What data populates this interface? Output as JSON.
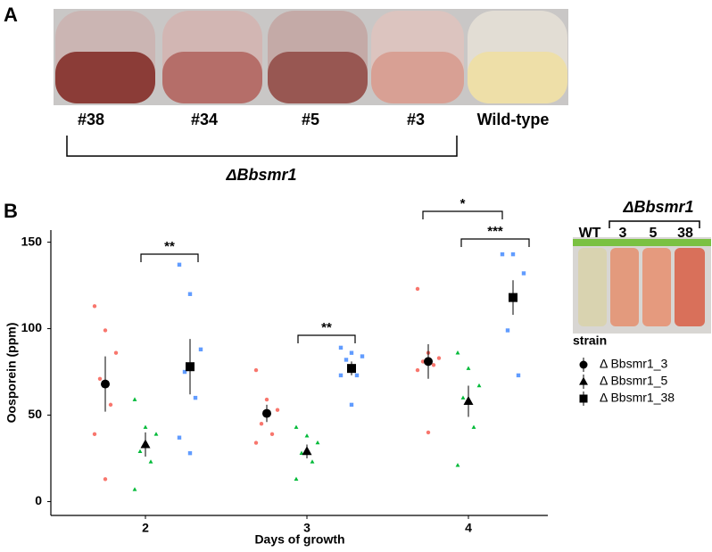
{
  "panel_labels": [
    "A",
    "B"
  ],
  "photo_a": {
    "flask_labels": [
      "#38",
      "#34",
      "#5",
      "#3",
      "Wild-type"
    ],
    "group_label": "ΔBbsmr1"
  },
  "inset_photo": {
    "group_label": "ΔBbsmr1",
    "tube_labels": [
      "WT",
      "3",
      "5",
      "38"
    ]
  },
  "chart_data": {
    "type": "strip",
    "xlabel": "Days of growth",
    "ylabel": "Oosporein (ppm)",
    "categories": [
      "2",
      "3",
      "4"
    ],
    "ylim": [
      -8,
      157
    ],
    "yticks": [
      0,
      50,
      100,
      150
    ],
    "legend_title": "strain",
    "series": [
      {
        "name": "Δ Bbsmr1_3",
        "color": "#f8766d",
        "marker": "circle",
        "means": [
          68,
          51,
          81
        ],
        "errors": [
          16,
          5,
          10
        ],
        "points": [
          [
            113,
            99,
            86,
            71,
            56,
            39,
            13
          ],
          [
            76,
            59,
            53,
            45,
            39,
            34
          ],
          [
            123,
            86,
            83,
            81,
            79,
            76,
            40
          ]
        ]
      },
      {
        "name": "Δ Bbsmr1_5",
        "color": "#00ba38",
        "marker": "triangle",
        "means": [
          33,
          29,
          58
        ],
        "errors": [
          7,
          4,
          9
        ],
        "points": [
          [
            59,
            43,
            39,
            29,
            23,
            7
          ],
          [
            43,
            38,
            34,
            28,
            23,
            13
          ],
          [
            86,
            77,
            67,
            60,
            43,
            21
          ]
        ]
      },
      {
        "name": "Δ Bbsmr1_38",
        "color": "#619cff",
        "marker": "square",
        "means": [
          78,
          77,
          118
        ],
        "errors": [
          16,
          4,
          10
        ],
        "points": [
          [
            137,
            120,
            88,
            75,
            60,
            37,
            28
          ],
          [
            89,
            86,
            84,
            82,
            73,
            73,
            56
          ],
          [
            143,
            143,
            132,
            99,
            73
          ]
        ]
      }
    ],
    "annotations": [
      "**",
      "**",
      "*",
      "***"
    ]
  }
}
